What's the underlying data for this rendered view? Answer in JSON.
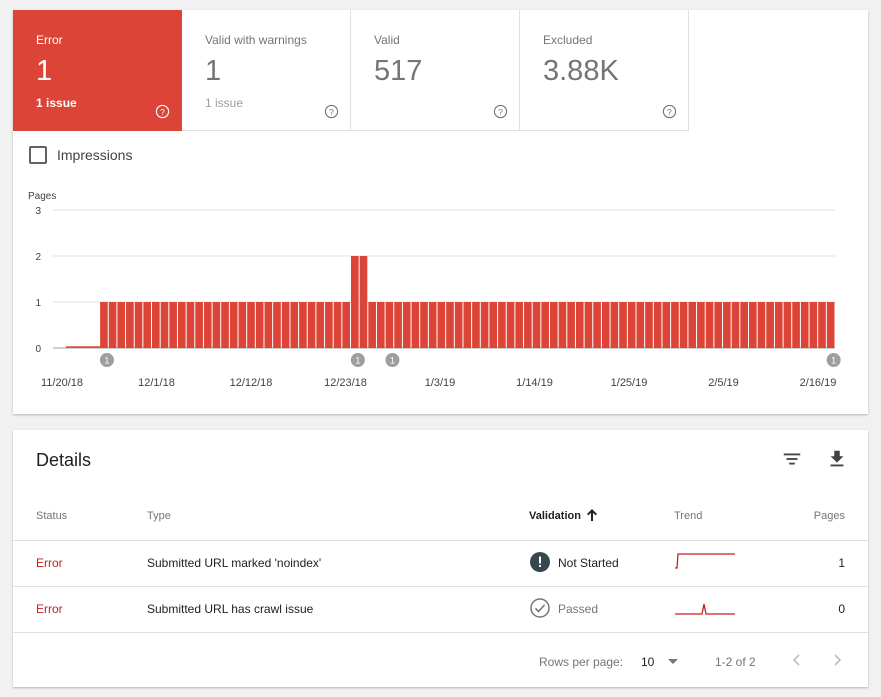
{
  "colors": {
    "error": "#db4437",
    "error_text": "#c5221f",
    "text_secondary": "#757575"
  },
  "tiles": [
    {
      "label": "Error",
      "value": "1",
      "sub": "1 issue",
      "active": true
    },
    {
      "label": "Valid with warnings",
      "value": "1",
      "sub": "1 issue",
      "active": false
    },
    {
      "label": "Valid",
      "value": "517",
      "sub": "",
      "active": false
    },
    {
      "label": "Excluded",
      "value": "3.88K",
      "sub": "",
      "active": false
    }
  ],
  "impressions": {
    "label": "Impressions",
    "checked": false
  },
  "chart_data": {
    "type": "bar",
    "ylabel": "Pages",
    "ylim": [
      0,
      3
    ],
    "yticks": [
      "0",
      "1",
      "2",
      "3"
    ],
    "xticks": [
      "11/20/18",
      "12/1/18",
      "12/12/18",
      "12/23/18",
      "1/3/19",
      "1/14/19",
      "1/25/19",
      "2/5/19",
      "2/16/19"
    ],
    "values": [
      0,
      0,
      0,
      0,
      1,
      1,
      1,
      1,
      1,
      1,
      1,
      1,
      1,
      1,
      1,
      1,
      1,
      1,
      1,
      1,
      1,
      1,
      1,
      1,
      1,
      1,
      1,
      1,
      1,
      1,
      1,
      1,
      1,
      2,
      2,
      1,
      1,
      1,
      1,
      1,
      1,
      1,
      1,
      1,
      1,
      1,
      1,
      1,
      1,
      1,
      1,
      1,
      1,
      1,
      1,
      1,
      1,
      1,
      1,
      1,
      1,
      1,
      1,
      1,
      1,
      1,
      1,
      1,
      1,
      1,
      1,
      1,
      1,
      1,
      1,
      1,
      1,
      1,
      1,
      1,
      1,
      1,
      1,
      1,
      1,
      1,
      1,
      1,
      1
    ],
    "annotations": [
      {
        "index": 4,
        "label": "1"
      },
      {
        "index": 33,
        "label": "1"
      },
      {
        "index": 37,
        "label": "1"
      },
      {
        "index": 88,
        "label": "1"
      }
    ]
  },
  "details": {
    "title": "Details",
    "filter_icon": "filter-icon",
    "download_icon": "download-icon",
    "headers": {
      "status": "Status",
      "type": "Type",
      "validation": "Validation",
      "trend": "Trend",
      "pages": "Pages"
    },
    "rows": [
      {
        "status": "Error",
        "type": "Submitted URL marked 'noindex'",
        "validation": "Not Started",
        "validation_icon": "exclamation-icon",
        "pages": "1"
      },
      {
        "status": "Error",
        "type": "Submitted URL has crawl issue",
        "validation": "Passed",
        "validation_icon": "check-circle-icon",
        "pages": "0"
      }
    ],
    "pagination": {
      "rows_per_page_label": "Rows per page:",
      "rows_per_page": "10",
      "range": "1-2 of 2"
    }
  }
}
